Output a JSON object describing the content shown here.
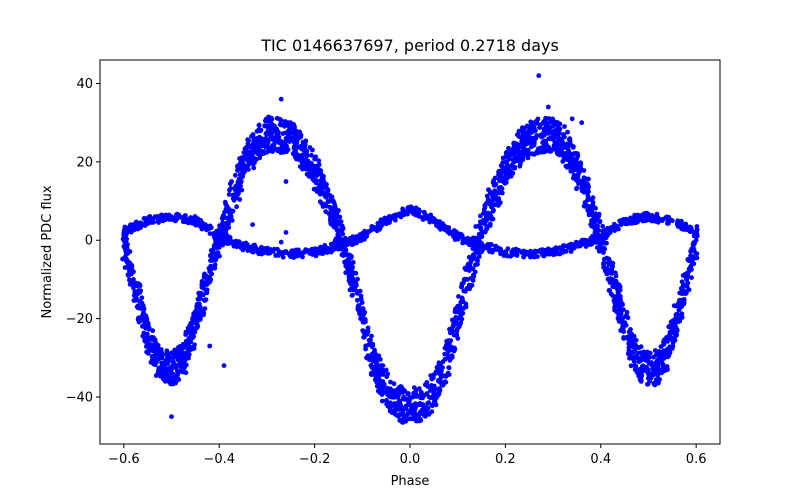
{
  "chart_data": {
    "type": "scatter",
    "title": "TIC 0146637697, period 0.2718 days",
    "xlabel": "Phase",
    "ylabel": "Normalized PDC flux",
    "xlim": [
      -0.65,
      0.65
    ],
    "ylim": [
      -52,
      46
    ],
    "x_ticks": [
      -0.6,
      -0.4,
      -0.2,
      0.0,
      0.2,
      0.4,
      0.6
    ],
    "x_tick_labels": [
      "−0.6",
      "−0.4",
      "−0.2",
      "0.0",
      "0.2",
      "0.4",
      "0.6"
    ],
    "y_ticks": [
      -40,
      -20,
      0,
      20,
      40
    ],
    "y_tick_labels": [
      "−40",
      "−20",
      "0",
      "20",
      "40"
    ],
    "grid": false,
    "marker_color": "#0000ff",
    "series": [
      {
        "curve": "primary",
        "x": [
          -0.6,
          -0.58,
          -0.56,
          -0.54,
          -0.52,
          -0.5,
          -0.48,
          -0.46,
          -0.44,
          -0.42,
          -0.4,
          -0.38,
          -0.36,
          -0.34,
          -0.32,
          -0.3,
          -0.28,
          -0.26,
          -0.24,
          -0.22,
          -0.2,
          -0.18,
          -0.16,
          -0.14,
          -0.12,
          -0.1,
          -0.08,
          -0.06,
          -0.04,
          -0.02,
          0.0,
          0.02,
          0.04,
          0.06,
          0.08,
          0.1,
          0.12,
          0.14,
          0.16,
          0.18,
          0.2,
          0.22,
          0.24,
          0.26,
          0.28,
          0.3,
          0.32,
          0.34,
          0.36,
          0.38,
          0.4,
          0.42,
          0.44,
          0.46,
          0.48,
          0.5,
          0.52,
          0.54,
          0.56,
          0.58,
          0.6
        ],
        "y": [
          0,
          -10,
          -20,
          -28,
          -32,
          -33,
          -31,
          -26,
          -17,
          -8,
          0,
          8,
          15,
          21,
          25,
          27,
          27,
          26,
          25,
          22,
          18,
          12,
          6,
          -1,
          -10,
          -20,
          -30,
          -36,
          -40,
          -42,
          -42,
          -42,
          -40,
          -36,
          -30,
          -20,
          -10,
          -1,
          6,
          12,
          18,
          22,
          25,
          26,
          27,
          27,
          25,
          21,
          15,
          8,
          0,
          -8,
          -17,
          -26,
          -31,
          -33,
          -32,
          -28,
          -20,
          -10,
          0
        ]
      },
      {
        "curve": "secondary",
        "x": [
          -0.6,
          -0.55,
          -0.5,
          -0.45,
          -0.4,
          -0.35,
          -0.3,
          -0.25,
          -0.2,
          -0.15,
          -0.1,
          -0.05,
          0.0,
          0.05,
          0.1,
          0.15,
          0.2,
          0.25,
          0.3,
          0.35,
          0.4,
          0.45,
          0.5,
          0.55,
          0.6
        ],
        "y": [
          2,
          5,
          6,
          5,
          1,
          -1.5,
          -3,
          -3.5,
          -3,
          -1.5,
          1,
          5,
          8,
          5,
          1,
          -1.5,
          -3,
          -3.5,
          -3,
          -1.5,
          1,
          5,
          6,
          5,
          2
        ]
      },
      {
        "curve": "outliers",
        "x": [
          -0.27,
          -0.26,
          -0.26,
          -0.27,
          0.27,
          0.29,
          0.34,
          0.36,
          -0.5,
          -0.42,
          -0.39,
          -0.33
        ],
        "y": [
          36,
          15,
          2,
          -0.5,
          42,
          34,
          31,
          30,
          -45,
          -27,
          -32,
          4
        ]
      }
    ]
  }
}
